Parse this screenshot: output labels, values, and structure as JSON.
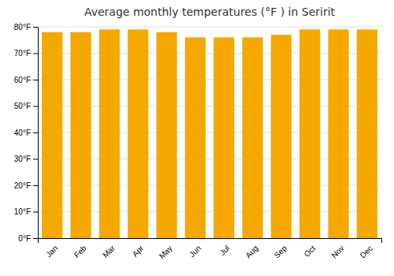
{
  "chart_data": {
    "type": "bar",
    "title": "Average monthly temperatures (°F ) in Seririt",
    "categories": [
      "Jan",
      "Feb",
      "Mar",
      "Apr",
      "May",
      "Jun",
      "Jul",
      "Aug",
      "Sep",
      "Oct",
      "Nov",
      "Dec"
    ],
    "values": [
      78,
      78,
      79,
      79,
      78,
      76,
      76,
      76,
      77,
      79,
      79,
      79
    ],
    "color": "#F5A800",
    "ylim": [
      0,
      80
    ],
    "yticks": [
      {
        "value": 0,
        "label": "0°F"
      },
      {
        "value": 10,
        "label": "10°F"
      },
      {
        "value": 20,
        "label": "20°F"
      },
      {
        "value": 30,
        "label": "30°F"
      },
      {
        "value": 40,
        "label": "40°F"
      },
      {
        "value": 50,
        "label": "50°F"
      },
      {
        "value": 60,
        "label": "60°F"
      },
      {
        "value": 70,
        "label": "70°F"
      },
      {
        "value": 80,
        "label": "80°F"
      }
    ],
    "grid": true
  }
}
